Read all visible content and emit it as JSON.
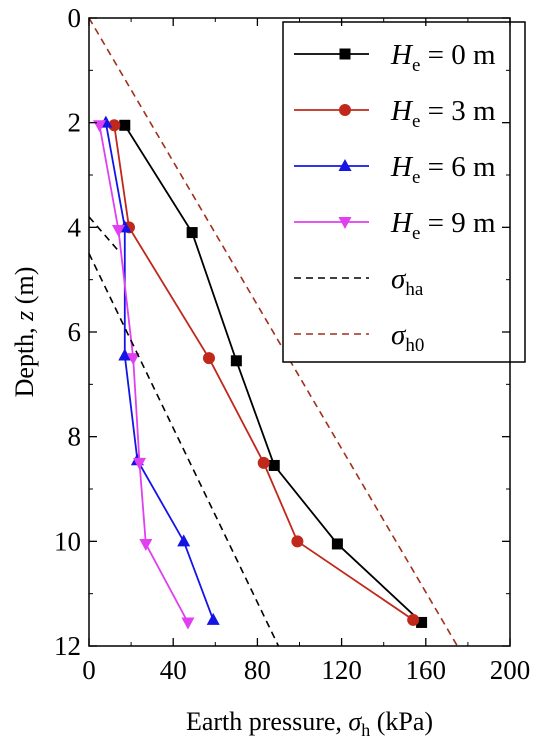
{
  "chart_data": {
    "type": "line",
    "xlabel": {
      "prefix": "Earth pressure, ",
      "symbol": "σ",
      "subscript": "h",
      "suffix": " (kPa)"
    },
    "ylabel": {
      "prefix": "Depth, ",
      "symbol": "z",
      "suffix": " (m)"
    },
    "xlim": [
      0,
      200
    ],
    "ylim": [
      0,
      12
    ],
    "y_inverted": true,
    "x_ticks": [
      "0",
      "40",
      "80",
      "120",
      "160",
      "200"
    ],
    "x_tick_values": [
      0,
      40,
      80,
      120,
      160,
      200
    ],
    "y_ticks": [
      "0",
      "2",
      "4",
      "6",
      "8",
      "10",
      "12"
    ],
    "y_tick_values": [
      0,
      2,
      4,
      6,
      8,
      10,
      12
    ],
    "grid": false,
    "legend_position": "top-right",
    "series": [
      {
        "name": "He = 0 m",
        "label_symbol": "H",
        "label_sub": "e",
        "label_rest": " = 0 m",
        "color": "#000000",
        "marker": "square",
        "line": "solid",
        "x": [
          17,
          49,
          70,
          88,
          118,
          158
        ],
        "y": [
          2.05,
          4.1,
          6.55,
          8.55,
          10.05,
          11.55
        ]
      },
      {
        "name": "He = 3 m",
        "label_symbol": "H",
        "label_sub": "e",
        "label_rest": " = 3 m",
        "color": "#c0281c",
        "marker": "circle",
        "line": "solid",
        "x": [
          12,
          19,
          57,
          83,
          99,
          154
        ],
        "y": [
          2.05,
          4.0,
          6.5,
          8.5,
          10.0,
          11.5
        ]
      },
      {
        "name": "He = 6 m",
        "label_symbol": "H",
        "label_sub": "e",
        "label_rest": " = 6 m",
        "color": "#1414e6",
        "marker": "triangle-up",
        "line": "solid",
        "x": [
          8,
          17,
          17,
          23,
          45,
          59
        ],
        "y": [
          2.0,
          4.0,
          6.45,
          8.45,
          10.0,
          11.5
        ]
      },
      {
        "name": "He = 9 m",
        "label_symbol": "H",
        "label_sub": "e",
        "label_rest": " = 9 m",
        "color": "#e040f0",
        "marker": "triangle-down",
        "line": "solid",
        "x": [
          5,
          14,
          21,
          24,
          27,
          47
        ],
        "y": [
          2.05,
          4.05,
          6.5,
          8.5,
          10.05,
          11.55
        ]
      },
      {
        "name": "σha",
        "label_symbol": "σ",
        "label_sub": "ha",
        "label_rest": "",
        "color": "#000000",
        "marker": "none",
        "line": "dashed",
        "x": [
          0,
          90
        ],
        "y": [
          4.5,
          12.0
        ]
      },
      {
        "name": "σh0",
        "label_symbol": "σ",
        "label_sub": "h0",
        "label_rest": "",
        "color": "#a0301c",
        "marker": "none",
        "line": "dashed",
        "x": [
          0,
          175
        ],
        "y": [
          0.0,
          12.0
        ]
      }
    ],
    "extra_dashed_segments": [
      {
        "color": "#000000",
        "x": [
          0,
          14
        ],
        "y": [
          3.8,
          4.45
        ]
      }
    ]
  }
}
